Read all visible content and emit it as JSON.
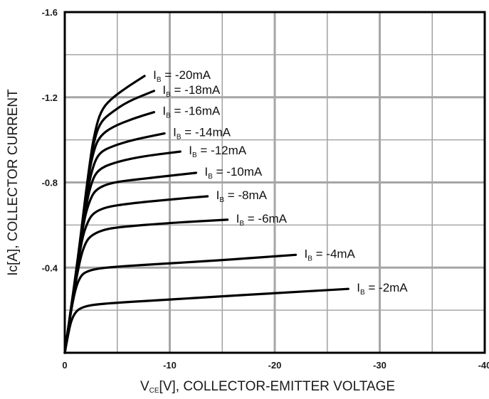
{
  "chart_data": {
    "type": "line",
    "title": "",
    "xlabel": {
      "main": "V",
      "sub": "CE",
      "rest": "[V], COLLECTOR-EMITTER VOLTAGE"
    },
    "ylabel": "Ic[A], COLLECTOR CURRENT",
    "xlim": [
      0,
      -40
    ],
    "ylim": [
      0,
      -1.6
    ],
    "x_ticks": [
      "0",
      "-10",
      "-20",
      "-30",
      "-40"
    ],
    "y_ticks": [
      "-0.4",
      "-0.8",
      "-1.2",
      "-1.6"
    ],
    "x_tick_values": [
      0,
      -10,
      -20,
      -30,
      -40
    ],
    "y_tick_values": [
      -0.4,
      -0.8,
      -1.2,
      -1.6
    ],
    "grid": true,
    "series": [
      {
        "name": "I_B = -2mA",
        "label_main": "I",
        "label_sub": "B",
        "label_rest": " = -2mA",
        "x": [
          0,
          -0.3,
          -0.6,
          -1.0,
          -1.5,
          -2.5,
          -5,
          -10,
          -15,
          -20,
          -27
        ],
        "y": [
          0,
          -0.08,
          -0.15,
          -0.19,
          -0.21,
          -0.225,
          -0.235,
          -0.25,
          -0.265,
          -0.28,
          -0.3
        ]
      },
      {
        "name": "I_B = -4mA",
        "label_main": "I",
        "label_sub": "B",
        "label_rest": " = -4mA",
        "x": [
          0,
          -0.5,
          -1.0,
          -1.5,
          -2.0,
          -3,
          -5,
          -10,
          -15,
          -22
        ],
        "y": [
          0,
          -0.17,
          -0.3,
          -0.36,
          -0.38,
          -0.395,
          -0.405,
          -0.42,
          -0.435,
          -0.46
        ]
      },
      {
        "name": "I_B = -6mA",
        "label_main": "I",
        "label_sub": "B",
        "label_rest": " = -6mA",
        "x": [
          0,
          -0.8,
          -1.5,
          -2.0,
          -2.5,
          -3.5,
          -5,
          -10,
          -15.5
        ],
        "y": [
          0,
          -0.27,
          -0.45,
          -0.52,
          -0.55,
          -0.575,
          -0.59,
          -0.61,
          -0.625
        ]
      },
      {
        "name": "I_B = -8mA",
        "label_main": "I",
        "label_sub": "B",
        "label_rest": " = -8mA",
        "x": [
          0,
          -0.9,
          -1.6,
          -2.2,
          -2.8,
          -4,
          -6,
          -10,
          -13.6
        ],
        "y": [
          0,
          -0.3,
          -0.53,
          -0.62,
          -0.66,
          -0.685,
          -0.7,
          -0.72,
          -0.735
        ]
      },
      {
        "name": "I_B = -10mA",
        "label_main": "I",
        "label_sub": "B",
        "label_rest": " = -10mA",
        "x": [
          0,
          -1.0,
          -1.8,
          -2.4,
          -3.0,
          -4.5,
          -7,
          -12.5
        ],
        "y": [
          0,
          -0.35,
          -0.62,
          -0.72,
          -0.77,
          -0.8,
          -0.815,
          -0.845
        ]
      },
      {
        "name": "I_B = -12mA",
        "label_main": "I",
        "label_sub": "B",
        "label_rest": " = -12mA",
        "x": [
          0,
          -1.1,
          -2.0,
          -2.6,
          -3.2,
          -4.5,
          -7,
          -11
        ],
        "y": [
          0,
          -0.38,
          -0.69,
          -0.81,
          -0.86,
          -0.89,
          -0.92,
          -0.945
        ]
      },
      {
        "name": "I_B = -14mA",
        "label_main": "I",
        "label_sub": "B",
        "label_rest": " = -14mA",
        "x": [
          0,
          -1.2,
          -2.1,
          -2.7,
          -3.3,
          -4.5,
          -6.5,
          -9.5
        ],
        "y": [
          0,
          -0.41,
          -0.75,
          -0.88,
          -0.94,
          -0.97,
          -1.0,
          -1.03
        ]
      },
      {
        "name": "I_B = -16mA",
        "label_main": "I",
        "label_sub": "B",
        "label_rest": " = -16mA",
        "x": [
          0,
          -1.3,
          -2.2,
          -2.8,
          -3.4,
          -4.5,
          -6.5,
          -8.5
        ],
        "y": [
          0,
          -0.45,
          -0.82,
          -0.96,
          -1.02,
          -1.06,
          -1.1,
          -1.13
        ]
      },
      {
        "name": "I_B = -18mA",
        "label_main": "I",
        "label_sub": "B",
        "label_rest": " = -18mA",
        "x": [
          0,
          -1.3,
          -2.3,
          -2.9,
          -3.5,
          -4.5,
          -6,
          -8.5
        ],
        "y": [
          0,
          -0.46,
          -0.87,
          -1.02,
          -1.09,
          -1.13,
          -1.18,
          -1.23
        ]
      },
      {
        "name": "I_B = -20mA",
        "label_main": "I",
        "label_sub": "B",
        "label_rest": " = -20mA",
        "x": [
          0,
          -1.4,
          -2.4,
          -3.0,
          -3.6,
          -4.6,
          -6,
          -7.6
        ],
        "y": [
          0,
          -0.48,
          -0.91,
          -1.07,
          -1.15,
          -1.2,
          -1.25,
          -1.3
        ]
      }
    ],
    "colors": {
      "line": "#000000",
      "grid": "#a6a6a6",
      "axis": "#000000",
      "background": "#ffffff"
    }
  }
}
